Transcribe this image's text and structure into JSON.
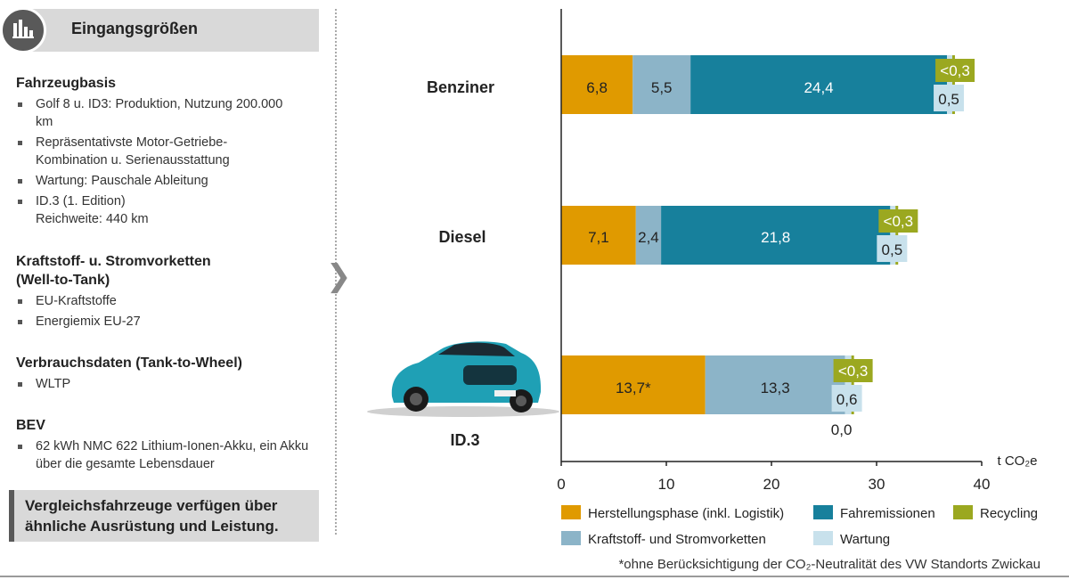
{
  "sidebar": {
    "title": "Eingangsgrößen",
    "sections": [
      {
        "heading": "Fahrzeugbasis",
        "items": [
          "Golf 8 u. ID3: Produktion, Nutzung 200.000 km",
          "Repräsentativste Motor-Getriebe-Kombination u. Serienausstattung",
          "Wartung: Pauschale Ableitung",
          "ID.3 (1. Edition) Reichweite: 440 km"
        ]
      },
      {
        "heading": "Kraftstoff- u. Stromvorketten (Well-to-Tank)",
        "items": [
          "EU-Kraftstoffe",
          "Energiemix EU-27"
        ]
      },
      {
        "heading": "Verbrauchsdaten (Tank-to-Wheel)",
        "items": [
          "WLTP"
        ]
      },
      {
        "heading": "BEV",
        "items": [
          "62 kWh NMC 622 Lithium-Ionen-Akku, ein Akku über die gesamte Lebensdauer"
        ]
      }
    ],
    "conclusion": "Vergleichsfahrzeuge verfügen über ähnliche Ausrüstung und Leistung."
  },
  "colors": {
    "herstellung": "#e09a00",
    "vorketten": "#8cb4c8",
    "fahremissionen": "#17809c",
    "recycling": "#9ba820",
    "wartung": "#c8e1ec"
  },
  "chart_data": {
    "type": "bar",
    "orientation": "horizontal",
    "stacked": true,
    "categories": [
      "Benziner",
      "Diesel",
      "ID.3"
    ],
    "series": [
      {
        "name": "Herstellungsphase (inkl. Logistik)",
        "values": [
          6.8,
          7.1,
          13.7
        ],
        "labels": [
          "6,8",
          "7,1",
          "13,7*"
        ]
      },
      {
        "name": "Kraftstoff- und Stromvorketten",
        "values": [
          5.5,
          2.4,
          13.3
        ],
        "labels": [
          "5,5",
          "2,4",
          "13,3"
        ]
      },
      {
        "name": "Fahremissionen",
        "values": [
          24.4,
          21.8,
          0.0
        ],
        "labels": [
          "24,4",
          "21,8",
          "0,0"
        ]
      },
      {
        "name": "Wartung",
        "values": [
          0.5,
          0.5,
          0.6
        ],
        "labels": [
          "0,5",
          "0,5",
          "0,6"
        ]
      },
      {
        "name": "Recycling",
        "values": [
          0.3,
          0.3,
          0.3
        ],
        "labels": [
          "<0,3",
          "<0,3",
          "<0,3"
        ]
      }
    ],
    "xlabel": "t CO₂e",
    "xlim": [
      0,
      40
    ],
    "xticks": [
      0,
      10,
      20,
      30,
      40
    ],
    "legend_position": "bottom",
    "legend_order": [
      "Herstellungsphase (inkl. Logistik)",
      "Fahremissionen",
      "Recycling",
      "Kraftstoff- und Stromvorketten",
      "Wartung"
    ],
    "footnote": "*ohne Berücksichtigung der CO₂-Neutralität des VW Standorts Zwickau"
  }
}
